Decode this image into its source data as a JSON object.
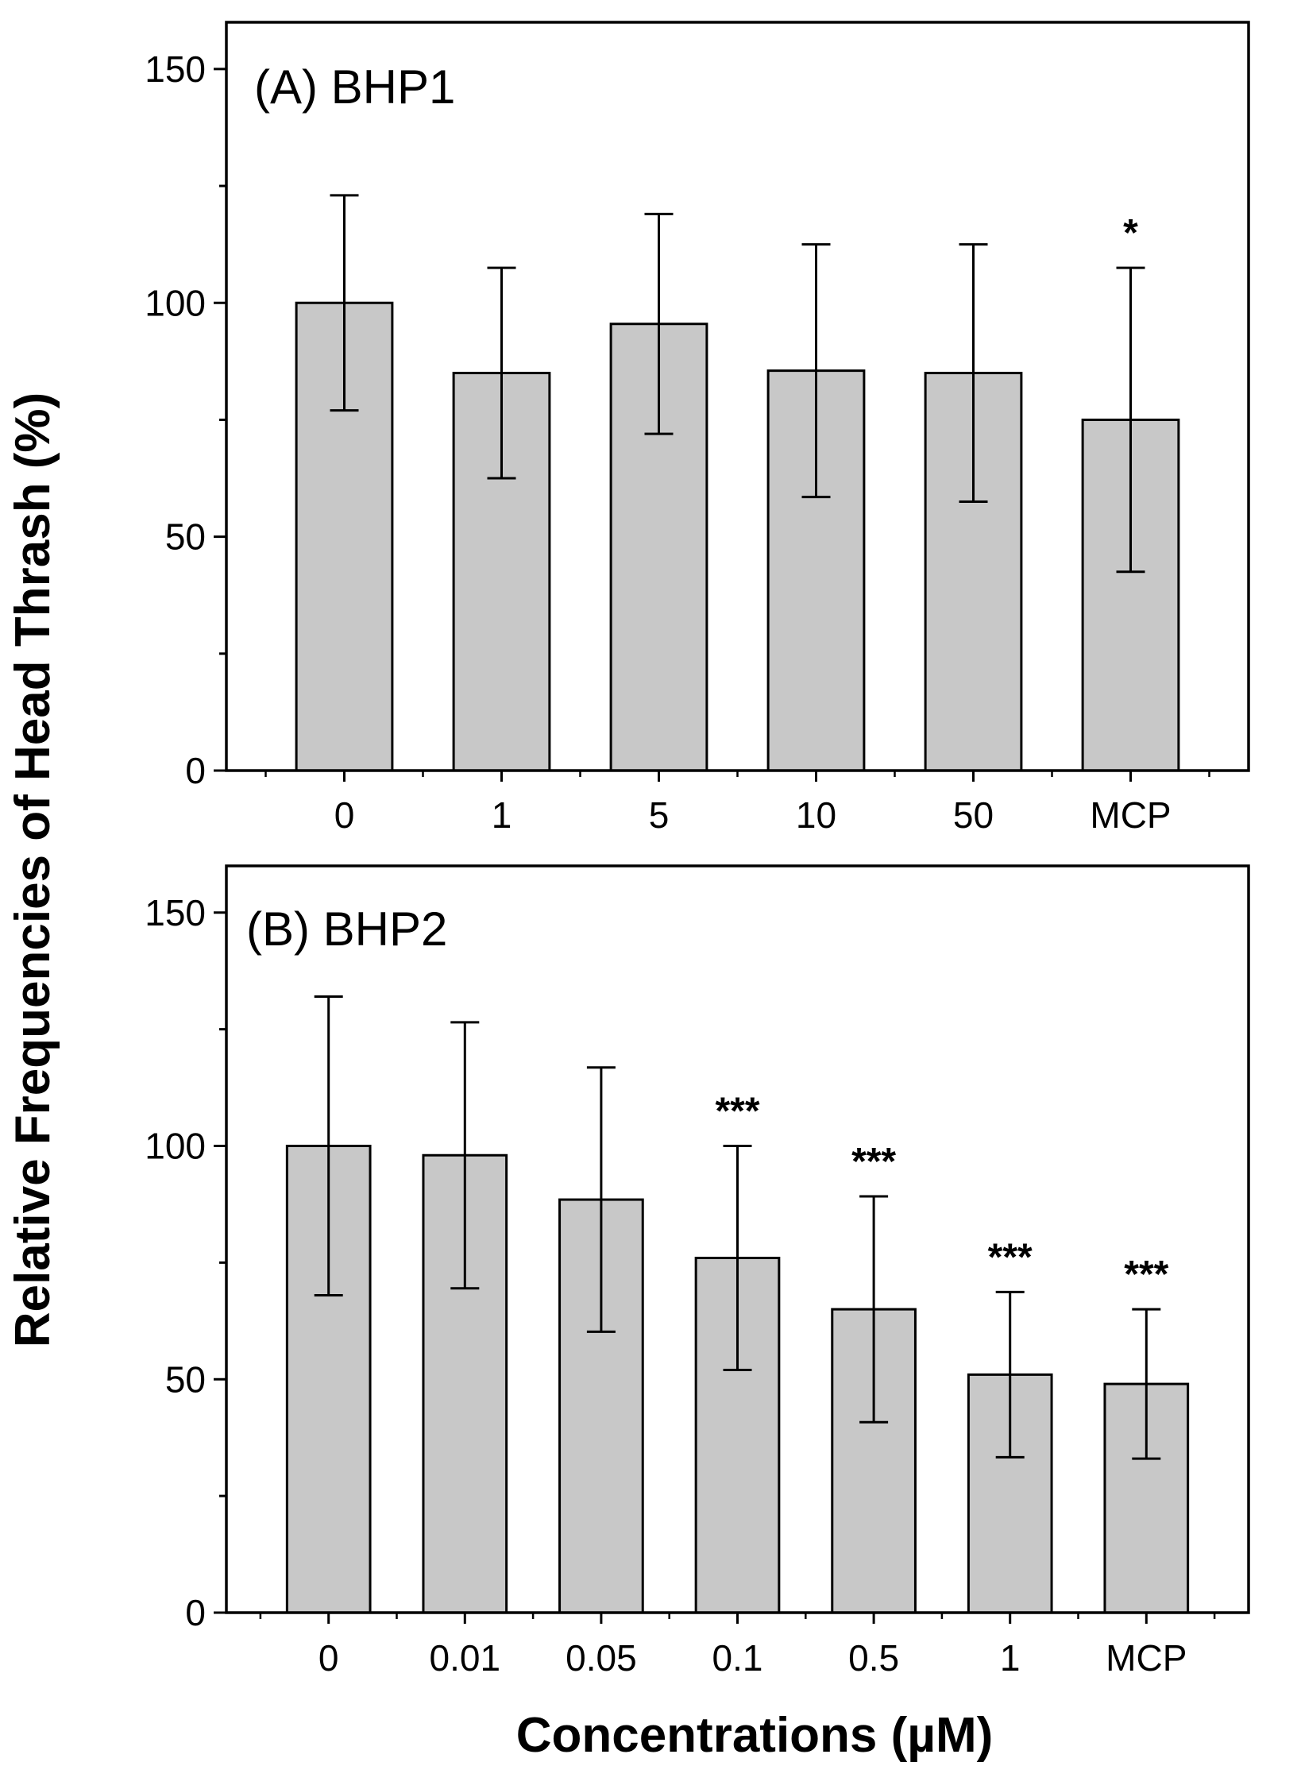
{
  "chart_data": {
    "ylabel": "Relative Frequencies of Head Thrash (%)",
    "xlabel": "Concentrations (µM)",
    "colors": {
      "bar_fill": "#c8c8c8",
      "stroke": "#000000",
      "background": "#ffffff"
    },
    "panels": [
      {
        "type": "bar",
        "label": "(A) BHP1",
        "categories": [
          "0",
          "1",
          "5",
          "10",
          "50",
          "MCP"
        ],
        "values": [
          100,
          85,
          95.5,
          85.5,
          85,
          75
        ],
        "errors": [
          23,
          22.5,
          23.5,
          27,
          27.5,
          32.5
        ],
        "significance": [
          "",
          "",
          "",
          "",
          "",
          "*"
        ],
        "ylim": [
          0,
          160
        ],
        "yticks": [
          "0",
          "50",
          "100",
          "150"
        ]
      },
      {
        "type": "bar",
        "label": "(B) BHP2",
        "categories": [
          "0",
          "0.01",
          "0.05",
          "0.1",
          "0.5",
          "1",
          "MCP"
        ],
        "values": [
          100,
          98,
          88.5,
          76,
          65,
          51,
          49
        ],
        "errors": [
          32,
          28.5,
          28.3,
          24,
          24.2,
          17.7,
          16
        ],
        "significance": [
          "",
          "",
          "",
          "***",
          "***",
          "***",
          "***"
        ],
        "ylim": [
          0,
          160
        ],
        "yticks": [
          "0",
          "50",
          "100",
          "150"
        ]
      }
    ]
  }
}
